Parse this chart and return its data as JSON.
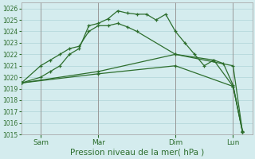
{
  "bg_color": "#d4ecee",
  "grid_color": "#afd4d8",
  "line_color": "#2d6e2d",
  "xlabel": "Pression niveau de la mer( hPa )",
  "xlabel_fontsize": 7.5,
  "ylim": [
    1015,
    1026.5
  ],
  "ytick_min": 1015,
  "ytick_max": 1026,
  "xtick_labels": [
    "Sam",
    "Mar",
    "Dim",
    "Lun"
  ],
  "xtick_positions": [
    0.083,
    0.333,
    0.667,
    0.917
  ],
  "total_days": 4,
  "series": [
    {
      "x": [
        0.0,
        0.083,
        0.125,
        0.167,
        0.208,
        0.25,
        0.292,
        0.333,
        0.375,
        0.417,
        0.458,
        0.5,
        0.542,
        0.583,
        0.625,
        0.667,
        0.708,
        0.75,
        0.792,
        0.833,
        0.875,
        0.917,
        0.958
      ],
      "y": [
        1019.5,
        1020.0,
        1020.5,
        1021.0,
        1022.0,
        1022.5,
        1024.5,
        1024.7,
        1025.1,
        1025.8,
        1025.6,
        1025.5,
        1025.5,
        1025.0,
        1025.5,
        1024.0,
        1023.0,
        1022.0,
        1021.0,
        1021.5,
        1021.2,
        1019.3,
        1015.2
      ]
    },
    {
      "x": [
        0.0,
        0.083,
        0.125,
        0.167,
        0.208,
        0.25,
        0.292,
        0.333,
        0.375,
        0.417,
        0.458,
        0.5,
        0.667,
        0.833,
        0.917,
        0.958
      ],
      "y": [
        1019.5,
        1021.0,
        1021.5,
        1022.0,
        1022.5,
        1022.7,
        1024.0,
        1024.5,
        1024.5,
        1024.7,
        1024.4,
        1024.0,
        1022.0,
        1021.5,
        1019.2,
        1015.2
      ]
    },
    {
      "x": [
        0.0,
        0.333,
        0.667,
        0.917,
        0.958
      ],
      "y": [
        1019.5,
        1020.5,
        1022.0,
        1021.0,
        1015.2
      ]
    },
    {
      "x": [
        0.0,
        0.333,
        0.667,
        0.917,
        0.958
      ],
      "y": [
        1019.5,
        1020.3,
        1021.0,
        1019.2,
        1015.3
      ]
    }
  ],
  "vline_positions": [
    0.083,
    0.333,
    0.667,
    0.917
  ],
  "vline_color": "#999999"
}
